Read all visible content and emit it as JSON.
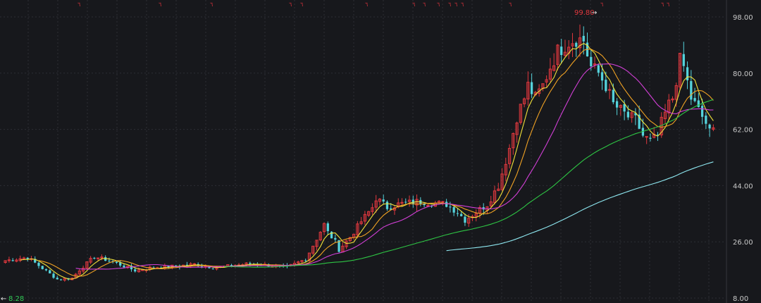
{
  "chart_data": {
    "type": "candlestick",
    "ylim": [
      8,
      98
    ],
    "y_ticks": [
      "98.00",
      "80.00",
      "62.00",
      "44.00",
      "26.00",
      "8.00"
    ],
    "grid": true,
    "colors": {
      "background": "#17181c",
      "grid": "#2c2e34",
      "up": "#e0383e",
      "down": "#55d3dc",
      "ma_yellow": "#f2e23a",
      "ma_orange": "#f0a224",
      "ma_magenta": "#d23fd6",
      "ma_green": "#2ec544",
      "ma_cyan": "#8ee7f0"
    },
    "annotations": {
      "high_label": "99.80",
      "low_label": "8.28"
    },
    "event_markers_count": 18,
    "close_path": [
      [
        0,
        20
      ],
      [
        6,
        21
      ],
      [
        10,
        17.5
      ],
      [
        14,
        14
      ],
      [
        18,
        14.3
      ],
      [
        20,
        17
      ],
      [
        24,
        21.2
      ],
      [
        28,
        20
      ],
      [
        32,
        18.2
      ],
      [
        35,
        16.8
      ],
      [
        40,
        17.8
      ],
      [
        46,
        18.2
      ],
      [
        51,
        18.8
      ],
      [
        56,
        17.8
      ],
      [
        60,
        18.2
      ],
      [
        66,
        19
      ],
      [
        71,
        18.5
      ],
      [
        76,
        17.8
      ],
      [
        81,
        20.5
      ],
      [
        84,
        27
      ],
      [
        86,
        31.5
      ],
      [
        87,
        29
      ],
      [
        89,
        26
      ],
      [
        90,
        23.5
      ],
      [
        93,
        27.5
      ],
      [
        96,
        32.5
      ],
      [
        99,
        37
      ],
      [
        100,
        40
      ],
      [
        103,
        37
      ],
      [
        106,
        38
      ],
      [
        109,
        38.5
      ],
      [
        112,
        39
      ],
      [
        115,
        38.5
      ],
      [
        119,
        38
      ],
      [
        122,
        35.5
      ],
      [
        124,
        33
      ],
      [
        127,
        35.5
      ],
      [
        130,
        38
      ],
      [
        133,
        44
      ],
      [
        136,
        56
      ],
      [
        138,
        66
      ],
      [
        140,
        72
      ],
      [
        141,
        76
      ],
      [
        143,
        72
      ],
      [
        145,
        76
      ],
      [
        147,
        82
      ],
      [
        149,
        87
      ],
      [
        150,
        88
      ],
      [
        152,
        90
      ],
      [
        154,
        91
      ],
      [
        156,
        90.5
      ],
      [
        157,
        86
      ],
      [
        158,
        82
      ],
      [
        160,
        80
      ],
      [
        162,
        76
      ],
      [
        164,
        70
      ],
      [
        166,
        68
      ],
      [
        168,
        66
      ],
      [
        170,
        65
      ],
      [
        172,
        60
      ],
      [
        174,
        58
      ],
      [
        176,
        60
      ],
      [
        177,
        64
      ],
      [
        179,
        70
      ],
      [
        180,
        72
      ],
      [
        182,
        84
      ],
      [
        183,
        82
      ],
      [
        185,
        72
      ],
      [
        187,
        68
      ],
      [
        189,
        64
      ],
      [
        190,
        62
      ],
      [
        191,
        62.5
      ]
    ]
  }
}
